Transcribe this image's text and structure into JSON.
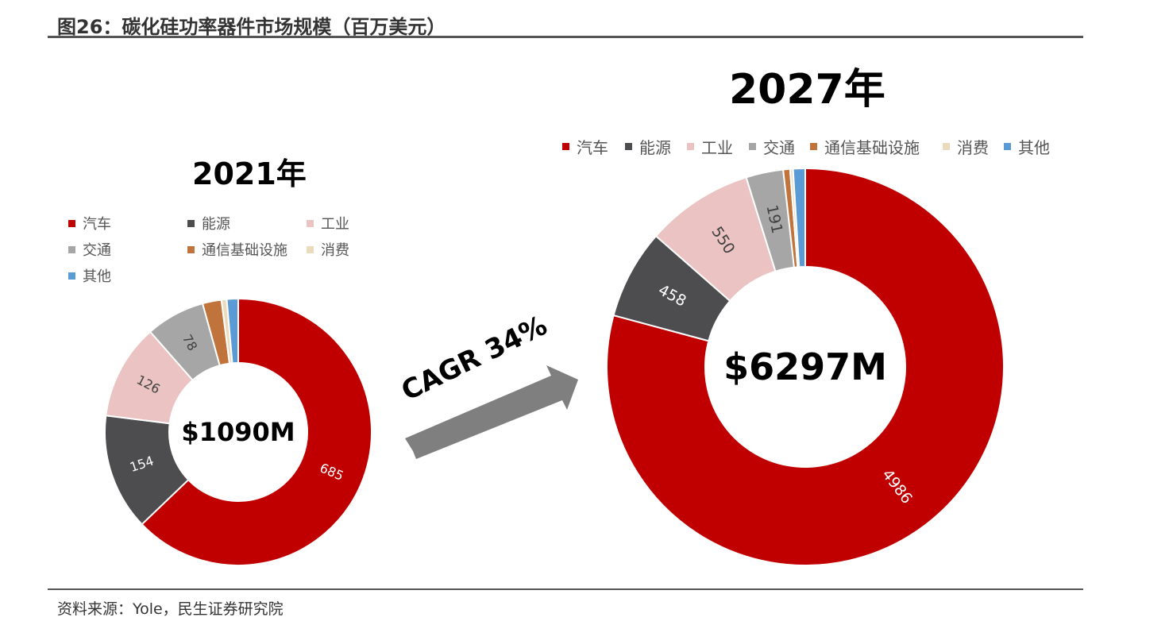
{
  "header": {
    "title": "图26：碳化硅功率器件市场规模（百万美元）"
  },
  "footer": {
    "source": "资料来源：Yole，民生证券研究院"
  },
  "annotation": {
    "cagr": "CAGR 34%"
  },
  "colors": {
    "汽车": "#c00000",
    "能源": "#4d4d4f",
    "工业": "#eac3c2",
    "交通": "#a6a6a6",
    "通信基础设施": "#c0733a",
    "消费": "#eadbbd",
    "其他": "#5b9bd5"
  },
  "chart_data": [
    {
      "type": "pie",
      "variant": "donut",
      "title": "2021年",
      "center_label": "$1090M",
      "categories": [
        "汽车",
        "能源",
        "工业",
        "交通",
        "通信基础设施",
        "消费",
        "其他"
      ],
      "values": [
        685,
        154,
        126,
        78,
        25,
        7,
        15
      ],
      "data_labels": [
        "685",
        "154",
        "126",
        "78",
        "",
        "",
        ""
      ],
      "legend": [
        "汽车",
        "能源",
        "工业",
        "交通",
        "通信基础设施",
        "消费",
        "其他"
      ]
    },
    {
      "type": "pie",
      "variant": "donut",
      "title": "2027年",
      "center_label": "$6297M",
      "categories": [
        "汽车",
        "能源",
        "工业",
        "交通",
        "通信基础设施",
        "消费",
        "其他"
      ],
      "values": [
        4986,
        458,
        550,
        191,
        35,
        15,
        62
      ],
      "data_labels": [
        "4986",
        "458",
        "550",
        "191",
        "",
        "",
        ""
      ],
      "legend": [
        "汽车",
        "能源",
        "工业",
        "交通",
        "通信基础设施",
        "消费",
        "其他"
      ]
    }
  ]
}
